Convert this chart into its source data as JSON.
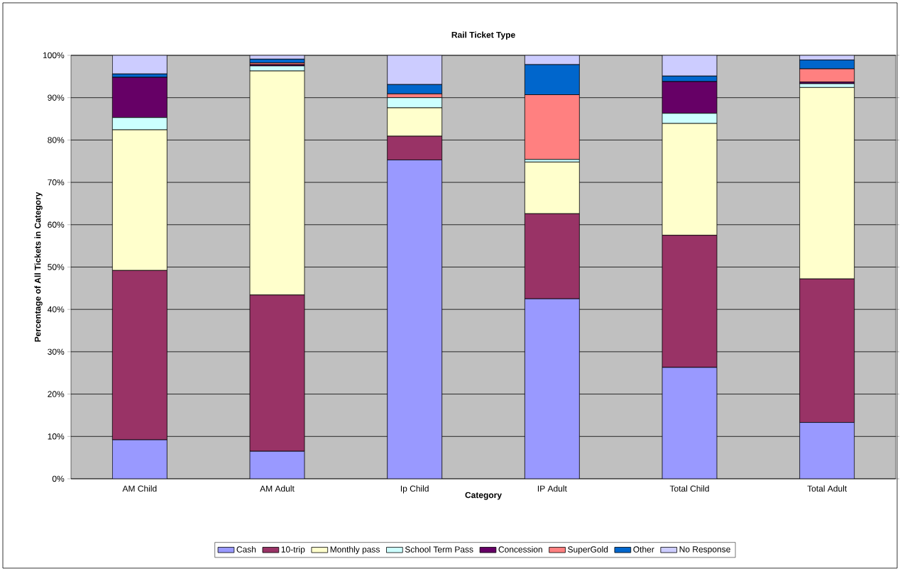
{
  "chart_data": {
    "type": "bar",
    "stacked": true,
    "title": "Rail Ticket Type",
    "xlabel": "Category",
    "ylabel": "Percentage of All Tickets in Category",
    "categories": [
      "AM Child",
      "AM Adult",
      "Ip Child",
      "IP Adult",
      "Total Child",
      "Total Adult"
    ],
    "series": [
      {
        "name": "Cash",
        "color": "#9999ff",
        "values": [
          9.2,
          6.5,
          75.3,
          42.5,
          26.3,
          13.3
        ]
      },
      {
        "name": "10-trip",
        "color": "#993366",
        "values": [
          40.0,
          36.9,
          5.6,
          20.1,
          31.2,
          33.9
        ]
      },
      {
        "name": "Monthly pass",
        "color": "#ffffcc",
        "values": [
          33.2,
          52.9,
          6.7,
          12.2,
          26.4,
          45.2
        ]
      },
      {
        "name": "School Term Pass",
        "color": "#ccffff",
        "values": [
          2.9,
          1.2,
          2.4,
          0.6,
          2.4,
          0.9
        ]
      },
      {
        "name": "Concession",
        "color": "#660066",
        "values": [
          9.5,
          0.3,
          0,
          0,
          7.5,
          0.4
        ]
      },
      {
        "name": "SuperGold",
        "color": "#ff8080",
        "values": [
          0,
          0.4,
          0.9,
          15.3,
          0,
          3.1
        ]
      },
      {
        "name": "Other",
        "color": "#0066cc",
        "values": [
          0.8,
          0.9,
          2.2,
          7.1,
          1.3,
          2.1
        ]
      },
      {
        "name": "No Response",
        "color": "#ccccff",
        "values": [
          4.4,
          0.9,
          6.9,
          2.2,
          4.9,
          1.1
        ]
      }
    ],
    "ylim": [
      0,
      100
    ],
    "yticks": [
      {
        "value": 0,
        "label": "0%"
      },
      {
        "value": 10,
        "label": "10%"
      },
      {
        "value": 20,
        "label": "20%"
      },
      {
        "value": 30,
        "label": "30%"
      },
      {
        "value": 40,
        "label": "40%"
      },
      {
        "value": 50,
        "label": "50%"
      },
      {
        "value": 60,
        "label": "60%"
      },
      {
        "value": 70,
        "label": "70%"
      },
      {
        "value": 80,
        "label": "80%"
      },
      {
        "value": 90,
        "label": "90%"
      },
      {
        "value": 100,
        "label": "100%"
      }
    ],
    "grid": "y",
    "legend": "bottom"
  }
}
